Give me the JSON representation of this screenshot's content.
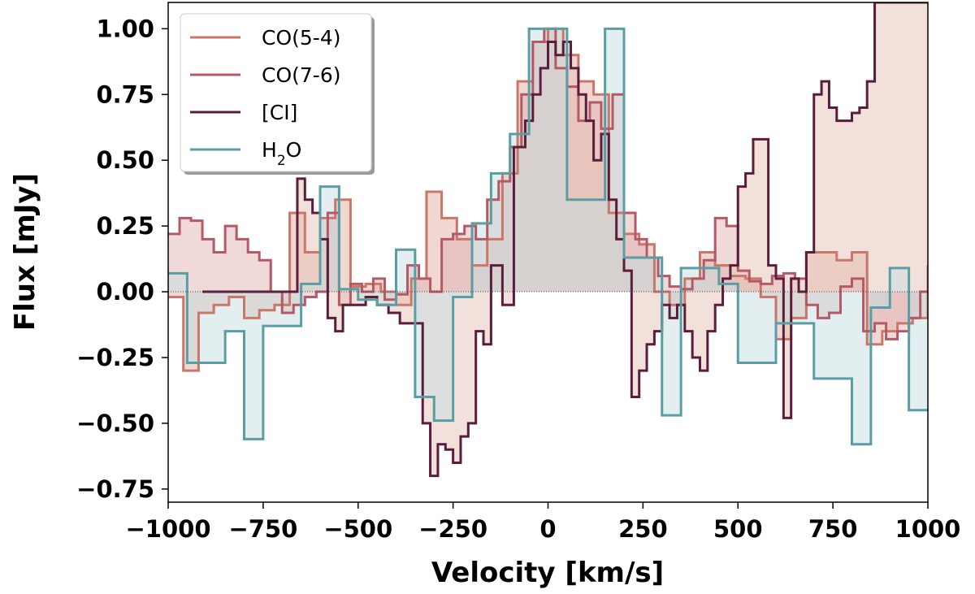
{
  "chart_data": {
    "type": "line",
    "xlabel": "Velocity [km/s]",
    "ylabel": "Flux [mJy]",
    "xlim": [
      -1000,
      1000
    ],
    "ylim": [
      -0.8,
      1.1
    ],
    "xticks": [
      -1000,
      -750,
      -500,
      -250,
      0,
      250,
      500,
      750,
      1000
    ],
    "xtick_labels": [
      "−1000",
      "−750",
      "−500",
      "−250",
      "0",
      "250",
      "500",
      "750",
      "1000"
    ],
    "yticks": [
      -0.75,
      -0.5,
      -0.25,
      0.0,
      0.25,
      0.5,
      0.75,
      1.0
    ],
    "ytick_labels": [
      "−0.75",
      "−0.50",
      "−0.25",
      "0.00",
      "0.25",
      "0.50",
      "0.75",
      "1.00"
    ],
    "zero_line": true,
    "legend_position": "top-left",
    "series": [
      {
        "name": "CO(5-4)",
        "name_sub": "",
        "name_post": "",
        "color": "#c8776a",
        "fill": "#e2b0a3",
        "x": [
          -1000,
          -960,
          -920,
          -880,
          -840,
          -800,
          -760,
          -720,
          -680,
          -640,
          -600,
          -560,
          -520,
          -480,
          -440,
          -400,
          -360,
          -320,
          -280,
          -240,
          -200,
          -160,
          -120,
          -80,
          -40,
          0,
          40,
          80,
          120,
          160,
          200,
          240,
          280,
          320,
          360,
          400,
          440,
          480,
          520,
          560,
          600,
          640,
          680,
          720,
          760,
          800,
          840,
          880,
          920,
          960,
          1000
        ],
        "y": [
          -0.02,
          -0.3,
          -0.08,
          -0.05,
          -0.02,
          -0.1,
          -0.07,
          -0.05,
          0.3,
          0.15,
          0.28,
          0.35,
          0.02,
          0.03,
          0.0,
          -0.05,
          0.05,
          0.38,
          0.28,
          0.2,
          0.1,
          0.2,
          0.45,
          0.8,
          0.95,
          1.0,
          0.9,
          0.8,
          0.75,
          0.3,
          0.22,
          0.18,
          0.0,
          -0.05,
          0.05,
          0.15,
          0.1,
          0.06,
          0.05,
          -0.02,
          -0.18,
          -0.1,
          0.15,
          0.15,
          0.12,
          0.15,
          -0.2,
          -0.15,
          -0.12,
          -0.1,
          0.1
        ]
      },
      {
        "name": "CO(7-6)",
        "name_sub": "",
        "name_post": "",
        "color": "#b35a66",
        "fill": "#dfb4b4",
        "x": [
          -1000,
          -970,
          -940,
          -910,
          -880,
          -850,
          -820,
          -790,
          -760,
          -730,
          -700,
          -670,
          -640,
          -610,
          -580,
          -550,
          -520,
          -490,
          -460,
          -430,
          -400,
          -370,
          -340,
          -310,
          -280,
          -250,
          -220,
          -190,
          -160,
          -130,
          -100,
          -70,
          -40,
          -10,
          20,
          50,
          80,
          110,
          140,
          170,
          200,
          230,
          260,
          290,
          320,
          350,
          380,
          410,
          440,
          470,
          500,
          530,
          560,
          590,
          620,
          650,
          680,
          710,
          740,
          770,
          800,
          830,
          860,
          890,
          920,
          950,
          980,
          1000
        ],
        "y": [
          0.22,
          0.28,
          0.27,
          0.2,
          0.15,
          0.25,
          0.2,
          0.15,
          0.12,
          0.0,
          -0.08,
          -0.05,
          -0.02,
          0.0,
          0.3,
          -0.05,
          0.03,
          0.0,
          0.05,
          -0.03,
          -0.01,
          0.1,
          0.05,
          0.0,
          0.2,
          0.22,
          0.25,
          0.2,
          0.35,
          0.42,
          0.55,
          0.75,
          0.95,
          1.0,
          0.85,
          0.78,
          0.65,
          0.72,
          0.62,
          0.75,
          0.3,
          0.2,
          0.13,
          0.06,
          0.02,
          0.01,
          0.05,
          0.12,
          0.28,
          0.25,
          0.08,
          0.04,
          0.03,
          0.06,
          0.07,
          0.05,
          -0.05,
          -0.1,
          -0.08,
          0.02,
          0.05,
          -0.15,
          -0.12,
          -0.18,
          -0.15,
          -0.1,
          0.0,
          0.0
        ]
      },
      {
        "name": "[CI]",
        "name_sub": "",
        "name_post": "",
        "color": "#5a1e3c",
        "fill": "#e6c4b6",
        "x": [
          -910,
          -880,
          -840,
          -800,
          -760,
          -720,
          -690,
          -660,
          -640,
          -620,
          -600,
          -580,
          -560,
          -540,
          -510,
          -480,
          -450,
          -420,
          -390,
          -360,
          -330,
          -310,
          -290,
          -270,
          -250,
          -230,
          -210,
          -190,
          -170,
          -150,
          -120,
          -90,
          -60,
          -40,
          -20,
          0,
          20,
          40,
          60,
          80,
          100,
          120,
          140,
          160,
          180,
          200,
          220,
          240,
          260,
          280,
          300,
          320,
          340,
          360,
          380,
          400,
          420,
          440,
          460,
          480,
          500,
          520,
          540,
          560,
          580,
          600,
          620,
          640,
          660,
          680,
          700,
          720,
          740,
          760,
          780,
          800,
          820,
          840,
          860,
          880,
          900,
          920,
          940,
          960,
          980,
          1000
        ],
        "y": [
          0.0,
          0.0,
          0.0,
          0.0,
          0.0,
          0.0,
          0.0,
          0.43,
          0.35,
          0.3,
          0.2,
          -0.1,
          -0.15,
          -0.05,
          -0.05,
          -0.02,
          -0.05,
          -0.08,
          -0.12,
          -0.12,
          -0.5,
          -0.7,
          -0.58,
          -0.6,
          -0.65,
          -0.55,
          -0.5,
          -0.15,
          -0.2,
          0.1,
          -0.05,
          0.55,
          0.65,
          0.75,
          0.85,
          0.95,
          0.9,
          0.95,
          0.85,
          0.75,
          0.65,
          0.5,
          0.6,
          0.35,
          0.2,
          0.08,
          -0.4,
          -0.3,
          -0.2,
          -0.15,
          -0.05,
          -0.1,
          -0.05,
          -0.15,
          -0.25,
          -0.3,
          -0.15,
          -0.05,
          0.05,
          0.1,
          0.4,
          0.45,
          0.58,
          0.58,
          0.1,
          0.05,
          -0.48,
          0.05,
          0.0,
          0.15,
          0.75,
          0.8,
          0.7,
          0.65,
          0.65,
          0.68,
          0.7,
          0.8,
          1.1,
          1.1,
          1.1,
          1.1,
          1.1,
          1.1,
          1.1,
          1.1
        ]
      },
      {
        "name": "H",
        "name_sub": "2",
        "name_post": "O",
        "color": "#5a9ea4",
        "fill": "#c5dde0",
        "x": [
          -1000,
          -950,
          -900,
          -850,
          -800,
          -750,
          -700,
          -650,
          -600,
          -550,
          -500,
          -450,
          -400,
          -350,
          -300,
          -250,
          -200,
          -150,
          -100,
          -50,
          0,
          50,
          100,
          150,
          200,
          250,
          300,
          350,
          400,
          450,
          500,
          550,
          600,
          650,
          700,
          750,
          800,
          850,
          900,
          950,
          1000
        ],
        "y": [
          0.07,
          -0.27,
          -0.27,
          -0.15,
          -0.56,
          -0.13,
          -0.13,
          0.03,
          0.4,
          0.01,
          -0.03,
          -0.05,
          0.16,
          -0.4,
          -0.49,
          -0.02,
          0.26,
          0.45,
          0.6,
          1.0,
          1.0,
          0.35,
          0.35,
          1.0,
          0.13,
          0.13,
          -0.47,
          0.09,
          0.09,
          0.03,
          -0.27,
          -0.27,
          -0.12,
          -0.12,
          -0.33,
          -0.33,
          -0.58,
          -0.06,
          0.09,
          -0.45,
          -0.45
        ]
      }
    ]
  }
}
